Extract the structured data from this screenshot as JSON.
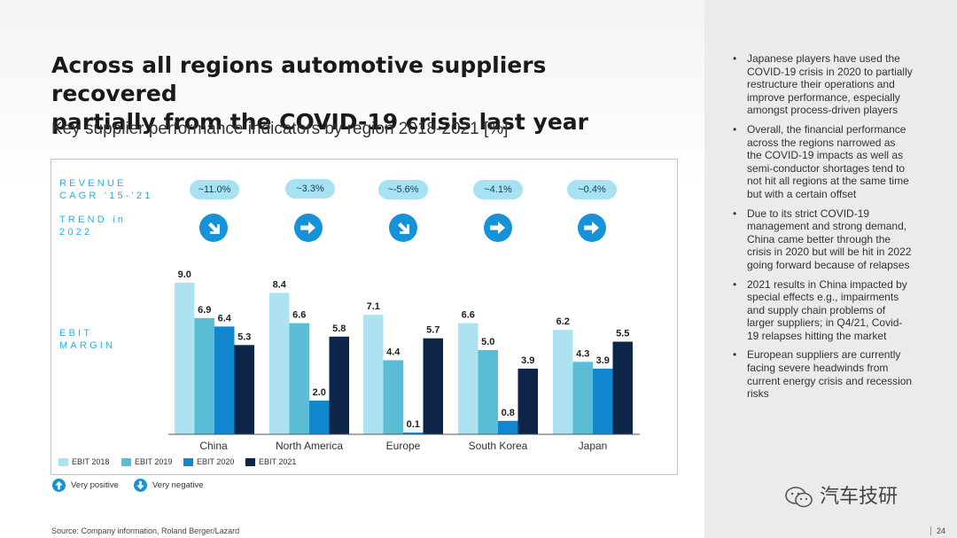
{
  "slide": {
    "title_line1": "Across all regions automotive suppliers recovered",
    "title_line2": "partially from the COVID-19 crisis last year",
    "subtitle": "Key supplier performance indicators by region 2018-2021 [%]",
    "source": "Source: Company information, Roland Berger/Lazard",
    "page_number": "24",
    "watermark_text": "汽车技研"
  },
  "row_labels": {
    "revenue_line1": "REVENUE",
    "revenue_line2": "CAGR '15-'21",
    "trend_line1": "TREND in",
    "trend_line2": "2022",
    "ebit_line1": "EBIT",
    "ebit_line2": "MARGIN"
  },
  "regions": [
    {
      "name": "China",
      "cagr": "~11.0%",
      "trend": "very-negative"
    },
    {
      "name": "North America",
      "cagr": "~3.3%",
      "trend": "neutral"
    },
    {
      "name": "Europe",
      "cagr": "~-5.6%",
      "trend": "very-negative"
    },
    {
      "name": "South Korea",
      "cagr": "~4.1%",
      "trend": "neutral"
    },
    {
      "name": "Japan",
      "cagr": "~0.4%",
      "trend": "neutral"
    }
  ],
  "trend_key": {
    "positive": "Very positive",
    "negative": "Very negative"
  },
  "colors": {
    "ebit2018": "#ade3f1",
    "ebit2019": "#5bbcd6",
    "ebit2020": "#1087cf",
    "ebit2021": "#0c2548",
    "accent": "#1592d8",
    "label_accent": "#27b0e0"
  },
  "chart_data": {
    "type": "bar",
    "title": "",
    "categories": [
      "China",
      "North America",
      "Europe",
      "South Korea",
      "Japan"
    ],
    "series": [
      {
        "name": "EBIT 2018",
        "values": [
          9.0,
          8.4,
          7.1,
          6.6,
          6.2
        ]
      },
      {
        "name": "EBIT 2019",
        "values": [
          6.9,
          6.6,
          4.4,
          5.0,
          4.3
        ]
      },
      {
        "name": "EBIT 2020",
        "values": [
          6.4,
          2.0,
          0.1,
          0.8,
          3.9
        ]
      },
      {
        "name": "EBIT 2021",
        "values": [
          5.3,
          5.8,
          5.7,
          3.9,
          5.5
        ]
      }
    ],
    "ylim": [
      0,
      9.2
    ],
    "grid": false,
    "legend": "bottom-left",
    "value_labels": true
  },
  "bullets": [
    "Japanese players have used the COVID-19 crisis in 2020 to partially restructure their operations and improve performance, especially amongst process-driven players",
    "Overall, the financial performance across the regions narrowed as the COVID-19 impacts as well as semi-conductor shortages tend to not hit all regions at the same time but with a certain offset",
    "Due to its strict COVID-19 management and strong demand, China came better through the crisis in 2020 but will be hit in 2022 going forward because of relapses",
    "2021 results in China impacted by special effects e.g., impairments and supply chain problems of larger suppliers; in Q4/21, Covid-19 relapses hitting the market",
    "European suppliers are currently facing severe headwinds from current energy crisis and recession risks"
  ]
}
